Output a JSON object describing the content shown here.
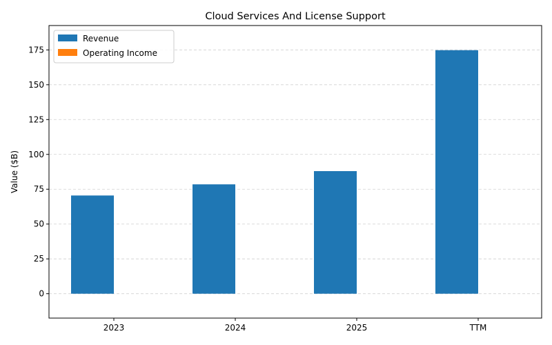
{
  "chart_data": {
    "type": "bar",
    "title": "Cloud Services And License Support",
    "xlabel": "",
    "ylabel": "Value ($B)",
    "categories": [
      "2023",
      "2024",
      "2025",
      "TTM"
    ],
    "series": [
      {
        "name": "Revenue",
        "values": [
          70.5,
          78.5,
          88.0,
          174.8
        ],
        "color": "#1f77b4"
      },
      {
        "name": "Operating Income",
        "values": [
          0,
          0,
          0,
          0
        ],
        "color": "#ff7f0e"
      }
    ],
    "ylim": [
      -17.5,
      192.5
    ],
    "yticks": [
      0,
      25,
      50,
      75,
      100,
      125,
      150,
      175
    ],
    "grid": "y-dashed",
    "legend": "top-left"
  }
}
